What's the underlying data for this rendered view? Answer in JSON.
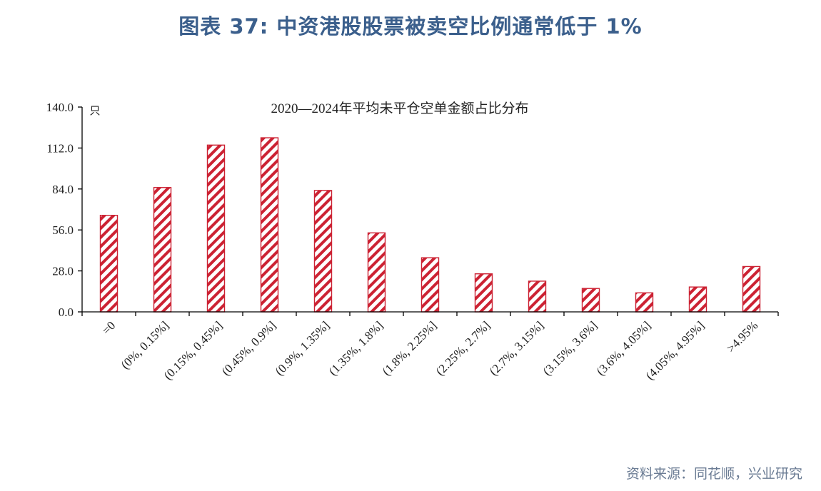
{
  "figure": {
    "title": "图表 37: 中资港股股票被卖空比例通常低于 1%",
    "source": "资料来源：同花顺，兴业研究"
  },
  "colors": {
    "bar": "#cc2233",
    "title": "#3b5f8c",
    "source": "#6b7c94"
  },
  "chart_data": {
    "type": "bar",
    "title": "2020—2024年平均未平仓空单金额占比分布",
    "unit": "只",
    "xlabel": "",
    "ylabel": "",
    "categories": [
      "=0",
      "(0%, 0.15%]",
      "(0.15%, 0.45%]",
      "(0.45%, 0.9%]",
      "(0.9%, 1.35%]",
      "(1.35%, 1.8%]",
      "(1.8%, 2.25%]",
      "(2.25%, 2.7%]",
      "(2.7%, 3.15%]",
      "(3.15%, 3.6%]",
      "(3.6%, 4.05%]",
      "(4.05%, 4.95%]",
      ">4.95%"
    ],
    "values": [
      66,
      85,
      114,
      119,
      83,
      54,
      37,
      26,
      21,
      16,
      13,
      17,
      31
    ],
    "ylim": [
      0,
      140
    ],
    "yticks": [
      "0.0",
      "28.0",
      "56.0",
      "84.0",
      "112.0",
      "140.0"
    ],
    "ytick_values": [
      0,
      28,
      56,
      84,
      112,
      140
    ],
    "pattern": "diagonal-hatch",
    "grid": false,
    "legend": "none"
  }
}
